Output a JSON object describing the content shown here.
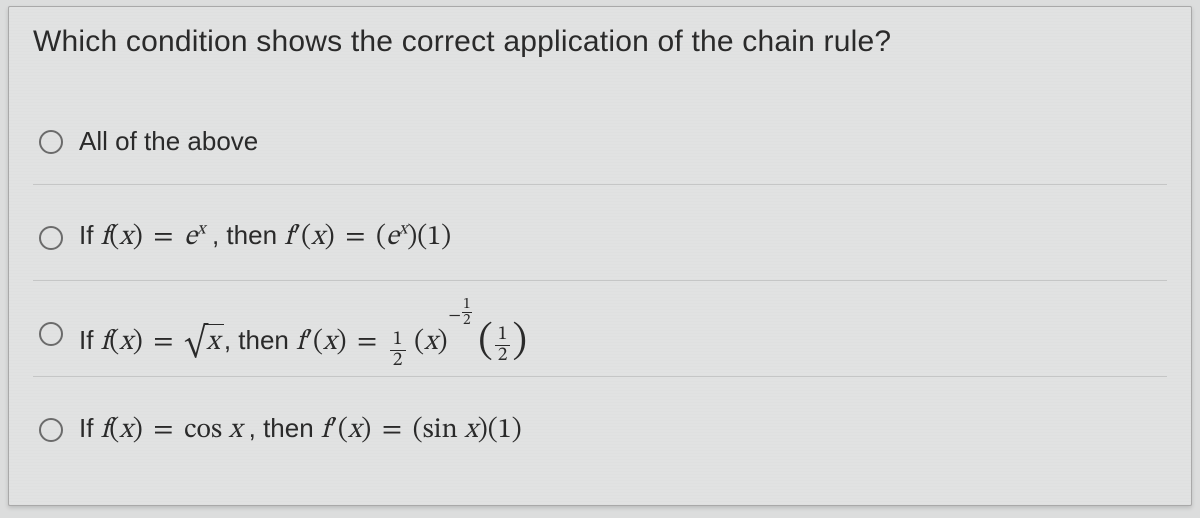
{
  "question": "Which condition shows the correct application of the chain rule?",
  "options": {
    "a": {
      "label": "All of the above"
    },
    "b": {
      "pre": "If ",
      "f": "f",
      "x": "x",
      "e": "e",
      "then": ", then ",
      "one": "1"
    },
    "c": {
      "pre": "If ",
      "f": "f",
      "x": "x",
      "then": ", then ",
      "half_num": "1",
      "half_den": "2",
      "exp_num": "1",
      "exp_den": "2"
    },
    "d": {
      "pre": "If ",
      "f": "f",
      "x": "x",
      "cos": "cos",
      "sin": "sin",
      "then": ", then ",
      "one": "1"
    }
  },
  "style": {
    "background": "#e1e2e2",
    "text_color": "#2a2a2a",
    "radio_border": "#6b6b6b",
    "question_fontsize": 30,
    "option_fontsize": 26,
    "math_fontsize": 28
  }
}
